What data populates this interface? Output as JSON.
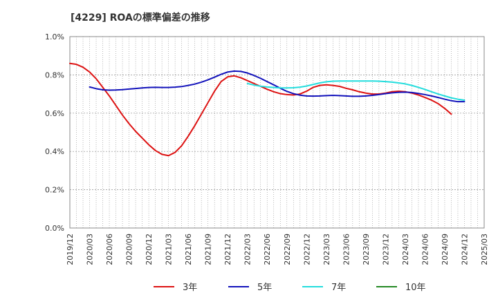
{
  "chart_data": {
    "type": "line",
    "title": "[4229]  ROAの標準偏差の推移",
    "xlabel": "",
    "ylabel": "",
    "ylim": [
      0.0,
      1.0
    ],
    "yticks": [
      "0.0%",
      "0.2%",
      "0.4%",
      "0.6%",
      "0.8%",
      "1.0%"
    ],
    "x_start": "2019/12",
    "x_end": "2025/03",
    "x_ticks": [
      "2019/12",
      "2020/03",
      "2020/06",
      "2020/09",
      "2020/12",
      "2021/03",
      "2021/06",
      "2021/09",
      "2021/12",
      "2022/03",
      "2022/06",
      "2022/09",
      "2022/12",
      "2023/03",
      "2023/06",
      "2023/09",
      "2023/12",
      "2024/03",
      "2024/06",
      "2024/09",
      "2024/12",
      "2025/03"
    ],
    "grid": true,
    "legend_position": "bottom",
    "series": [
      {
        "name": "3年",
        "color": "#dd1111",
        "values": [
          [
            "2019/12",
            0.86
          ],
          [
            "2020/01",
            0.855
          ],
          [
            "2020/02",
            0.84
          ],
          [
            "2020/03",
            0.815
          ],
          [
            "2020/04",
            0.78
          ],
          [
            "2020/05",
            0.735
          ],
          [
            "2020/06",
            0.69
          ],
          [
            "2020/07",
            0.64
          ],
          [
            "2020/08",
            0.59
          ],
          [
            "2020/09",
            0.545
          ],
          [
            "2020/10",
            0.505
          ],
          [
            "2020/11",
            0.47
          ],
          [
            "2020/12",
            0.435
          ],
          [
            "2021/01",
            0.405
          ],
          [
            "2021/02",
            0.385
          ],
          [
            "2021/03",
            0.378
          ],
          [
            "2021/04",
            0.395
          ],
          [
            "2021/05",
            0.43
          ],
          [
            "2021/06",
            0.48
          ],
          [
            "2021/07",
            0.535
          ],
          [
            "2021/08",
            0.595
          ],
          [
            "2021/09",
            0.655
          ],
          [
            "2021/10",
            0.715
          ],
          [
            "2021/11",
            0.765
          ],
          [
            "2021/12",
            0.79
          ],
          [
            "2022/01",
            0.795
          ],
          [
            "2022/02",
            0.785
          ],
          [
            "2022/03",
            0.77
          ],
          [
            "2022/04",
            0.755
          ],
          [
            "2022/05",
            0.74
          ],
          [
            "2022/06",
            0.725
          ],
          [
            "2022/07",
            0.712
          ],
          [
            "2022/08",
            0.702
          ],
          [
            "2022/09",
            0.697
          ],
          [
            "2022/10",
            0.695
          ],
          [
            "2022/11",
            0.7
          ],
          [
            "2022/12",
            0.715
          ],
          [
            "2023/01",
            0.735
          ],
          [
            "2023/02",
            0.745
          ],
          [
            "2023/03",
            0.748
          ],
          [
            "2023/04",
            0.745
          ],
          [
            "2023/05",
            0.74
          ],
          [
            "2023/06",
            0.73
          ],
          [
            "2023/07",
            0.722
          ],
          [
            "2023/08",
            0.712
          ],
          [
            "2023/09",
            0.705
          ],
          [
            "2023/10",
            0.7
          ],
          [
            "2023/11",
            0.7
          ],
          [
            "2023/12",
            0.705
          ],
          [
            "2024/01",
            0.712
          ],
          [
            "2024/02",
            0.715
          ],
          [
            "2024/03",
            0.712
          ],
          [
            "2024/04",
            0.705
          ],
          [
            "2024/05",
            0.695
          ],
          [
            "2024/06",
            0.682
          ],
          [
            "2024/07",
            0.668
          ],
          [
            "2024/08",
            0.65
          ],
          [
            "2024/09",
            0.625
          ],
          [
            "2024/10",
            0.595
          ]
        ]
      },
      {
        "name": "5年",
        "color": "#1111bb",
        "values": [
          [
            "2020/03",
            0.737
          ],
          [
            "2020/04",
            0.728
          ],
          [
            "2020/05",
            0.722
          ],
          [
            "2020/06",
            0.72
          ],
          [
            "2020/07",
            0.721
          ],
          [
            "2020/08",
            0.723
          ],
          [
            "2020/09",
            0.726
          ],
          [
            "2020/10",
            0.729
          ],
          [
            "2020/11",
            0.732
          ],
          [
            "2020/12",
            0.734
          ],
          [
            "2021/01",
            0.735
          ],
          [
            "2021/02",
            0.734
          ],
          [
            "2021/03",
            0.734
          ],
          [
            "2021/04",
            0.736
          ],
          [
            "2021/05",
            0.739
          ],
          [
            "2021/06",
            0.745
          ],
          [
            "2021/07",
            0.752
          ],
          [
            "2021/08",
            0.762
          ],
          [
            "2021/09",
            0.774
          ],
          [
            "2021/10",
            0.788
          ],
          [
            "2021/11",
            0.803
          ],
          [
            "2021/12",
            0.815
          ],
          [
            "2022/01",
            0.82
          ],
          [
            "2022/02",
            0.818
          ],
          [
            "2022/03",
            0.81
          ],
          [
            "2022/04",
            0.797
          ],
          [
            "2022/05",
            0.782
          ],
          [
            "2022/06",
            0.765
          ],
          [
            "2022/07",
            0.748
          ],
          [
            "2022/08",
            0.73
          ],
          [
            "2022/09",
            0.714
          ],
          [
            "2022/10",
            0.702
          ],
          [
            "2022/11",
            0.694
          ],
          [
            "2022/12",
            0.69
          ],
          [
            "2023/01",
            0.689
          ],
          [
            "2023/02",
            0.69
          ],
          [
            "2023/03",
            0.692
          ],
          [
            "2023/04",
            0.693
          ],
          [
            "2023/05",
            0.692
          ],
          [
            "2023/06",
            0.69
          ],
          [
            "2023/07",
            0.688
          ],
          [
            "2023/08",
            0.688
          ],
          [
            "2023/09",
            0.69
          ],
          [
            "2023/10",
            0.693
          ],
          [
            "2023/11",
            0.697
          ],
          [
            "2023/12",
            0.702
          ],
          [
            "2024/01",
            0.706
          ],
          [
            "2024/02",
            0.709
          ],
          [
            "2024/03",
            0.71
          ],
          [
            "2024/04",
            0.708
          ],
          [
            "2024/05",
            0.703
          ],
          [
            "2024/06",
            0.697
          ],
          [
            "2024/07",
            0.69
          ],
          [
            "2024/08",
            0.682
          ],
          [
            "2024/09",
            0.673
          ],
          [
            "2024/10",
            0.665
          ],
          [
            "2024/11",
            0.66
          ],
          [
            "2024/12",
            0.66
          ]
        ]
      },
      {
        "name": "7年",
        "color": "#22dddd",
        "values": [
          [
            "2022/03",
            0.755
          ],
          [
            "2022/04",
            0.747
          ],
          [
            "2022/05",
            0.741
          ],
          [
            "2022/06",
            0.737
          ],
          [
            "2022/07",
            0.734
          ],
          [
            "2022/08",
            0.732
          ],
          [
            "2022/09",
            0.732
          ],
          [
            "2022/10",
            0.733
          ],
          [
            "2022/11",
            0.736
          ],
          [
            "2022/12",
            0.742
          ],
          [
            "2023/01",
            0.75
          ],
          [
            "2023/02",
            0.758
          ],
          [
            "2023/03",
            0.764
          ],
          [
            "2023/04",
            0.767
          ],
          [
            "2023/05",
            0.768
          ],
          [
            "2023/06",
            0.768
          ],
          [
            "2023/07",
            0.768
          ],
          [
            "2023/08",
            0.768
          ],
          [
            "2023/09",
            0.768
          ],
          [
            "2023/10",
            0.768
          ],
          [
            "2023/11",
            0.767
          ],
          [
            "2023/12",
            0.765
          ],
          [
            "2024/01",
            0.762
          ],
          [
            "2024/02",
            0.758
          ],
          [
            "2024/03",
            0.753
          ],
          [
            "2024/04",
            0.745
          ],
          [
            "2024/05",
            0.735
          ],
          [
            "2024/06",
            0.724
          ],
          [
            "2024/07",
            0.712
          ],
          [
            "2024/08",
            0.7
          ],
          [
            "2024/09",
            0.69
          ],
          [
            "2024/10",
            0.68
          ],
          [
            "2024/11",
            0.673
          ],
          [
            "2024/12",
            0.668
          ]
        ]
      },
      {
        "name": "10年",
        "color": "#228822",
        "values": []
      }
    ]
  }
}
